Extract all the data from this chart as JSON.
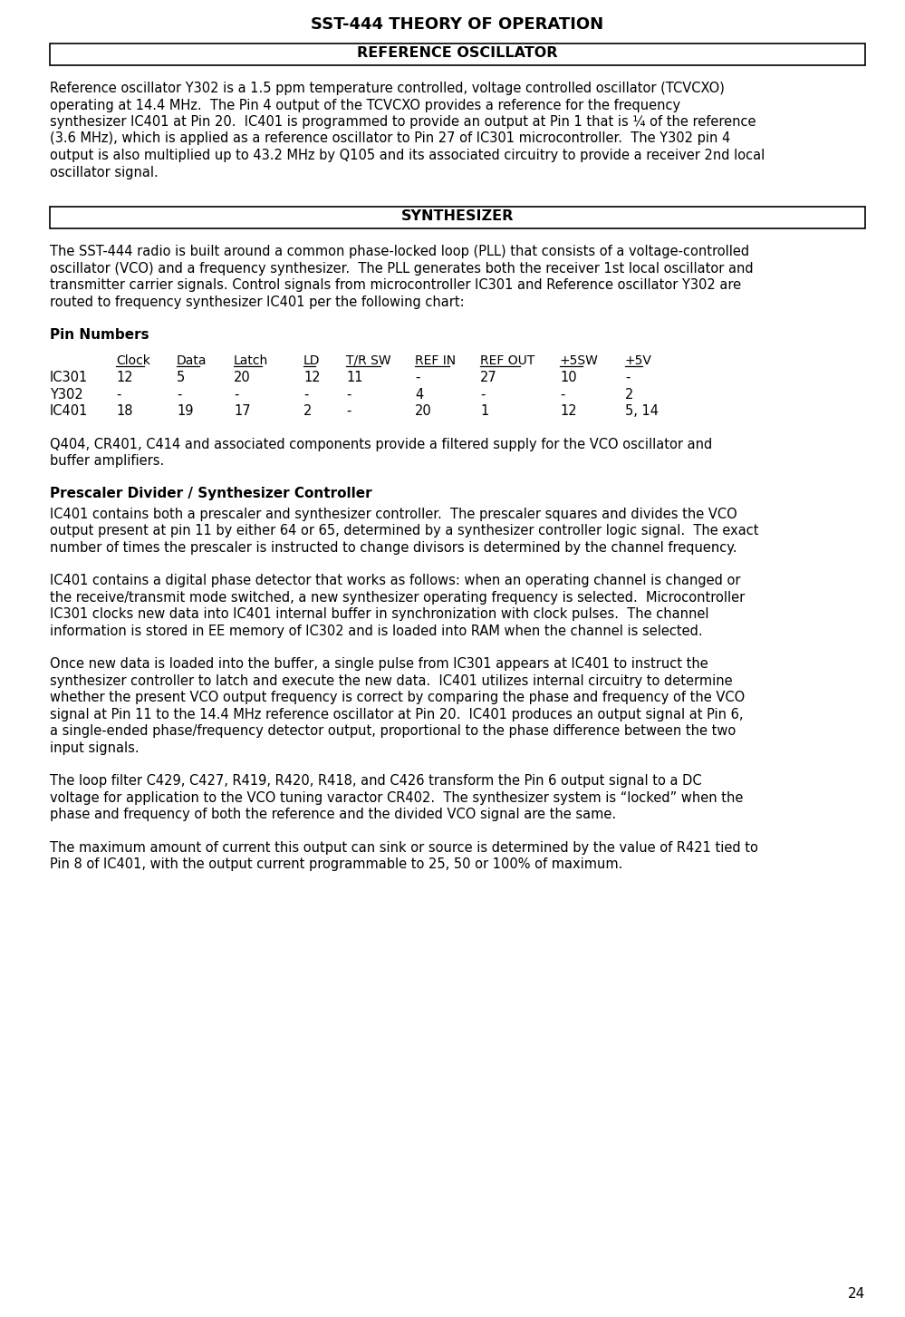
{
  "title": "SST-444 THEORY OF OPERATION",
  "background_color": "#ffffff",
  "page_number": "24",
  "section1_header": "REFERENCE OSCILLATOR",
  "section1_body": "Reference oscillator Y302 is a 1.5 ppm temperature controlled, voltage controlled oscillator (TCVCXO)\noperating at 14.4 MHz.  The Pin 4 output of the TCVCXO provides a reference for the frequency\nsynthesizer IC401 at Pin 20.  IC401 is programmed to provide an output at Pin 1 that is ¼ of the reference\n(3.6 MHz), which is applied as a reference oscillator to Pin 27 of IC301 microcontroller.  The Y302 pin 4\noutput is also multiplied up to 43.2 MHz by Q105 and its associated circuitry to provide a receiver 2nd local\noscillator signal.",
  "section2_header": "SYNTHESIZER",
  "section2_body": "The SST-444 radio is built around a common phase-locked loop (PLL) that consists of a voltage-controlled\noscillator (VCO) and a frequency synthesizer.  The PLL generates both the receiver 1st local oscillator and\ntransmitter carrier signals. Control signals from microcontroller IC301 and Reference oscillator Y302 are\nrouted to frequency synthesizer IC401 per the following chart:",
  "pin_numbers_label": "Pin Numbers",
  "table_headers": [
    "",
    "Clock",
    "Data",
    "Latch",
    "LD",
    "T/R SW",
    "REF IN",
    "REF OUT",
    "+5SW",
    "+5V"
  ],
  "table_rows": [
    [
      "IC301",
      "12",
      "5",
      "20",
      "12",
      "11",
      "-",
      "27",
      "10",
      "-"
    ],
    [
      "Y302",
      "-",
      "-",
      "-",
      "-",
      "-",
      "4",
      "-",
      "-",
      "2"
    ],
    [
      "IC401",
      "18",
      "19",
      "17",
      "2",
      "-",
      "20",
      "1",
      "12",
      "5, 14"
    ]
  ],
  "section2_body2": "Q404, CR401, C414 and associated components provide a filtered supply for the VCO oscillator and\nbuffer amplifiers.",
  "section3_header": "Prescaler Divider / Synthesizer Controller",
  "section3_para1": "IC401 contains both a prescaler and synthesizer controller.  The prescaler squares and divides the VCO\noutput present at pin 11 by either 64 or 65, determined by a synthesizer controller logic signal.  The exact\nnumber of times the prescaler is instructed to change divisors is determined by the channel frequency.",
  "section3_para2": "IC401 contains a digital phase detector that works as follows: when an operating channel is changed or\nthe receive/transmit mode switched, a new synthesizer operating frequency is selected.  Microcontroller\nIC301 clocks new data into IC401 internal buffer in synchronization with clock pulses.  The channel\ninformation is stored in EE memory of IC302 and is loaded into RAM when the channel is selected.",
  "section3_para3": "Once new data is loaded into the buffer, a single pulse from IC301 appears at IC401 to instruct the\nsynthesizer controller to latch and execute the new data.  IC401 utilizes internal circuitry to determine\nwhether the present VCO output frequency is correct by comparing the phase and frequency of the VCO\nsignal at Pin 11 to the 14.4 MHz reference oscillator at Pin 20.  IC401 produces an output signal at Pin 6,\na single-ended phase/frequency detector output, proportional to the phase difference between the two\ninput signals.",
  "section3_para4": "The loop filter C429, C427, R419, R420, R418, and C426 transform the Pin 6 output signal to a DC\nvoltage for application to the VCO tuning varactor CR402.  The synthesizer system is “locked” when the\nphase and frequency of both the reference and the divided VCO signal are the same.",
  "section3_para5": "The maximum amount of current this output can sink or source is determined by the value of R421 tied to\nPin 8 of IC401, with the output current programmable to 25, 50 or 100% of maximum."
}
